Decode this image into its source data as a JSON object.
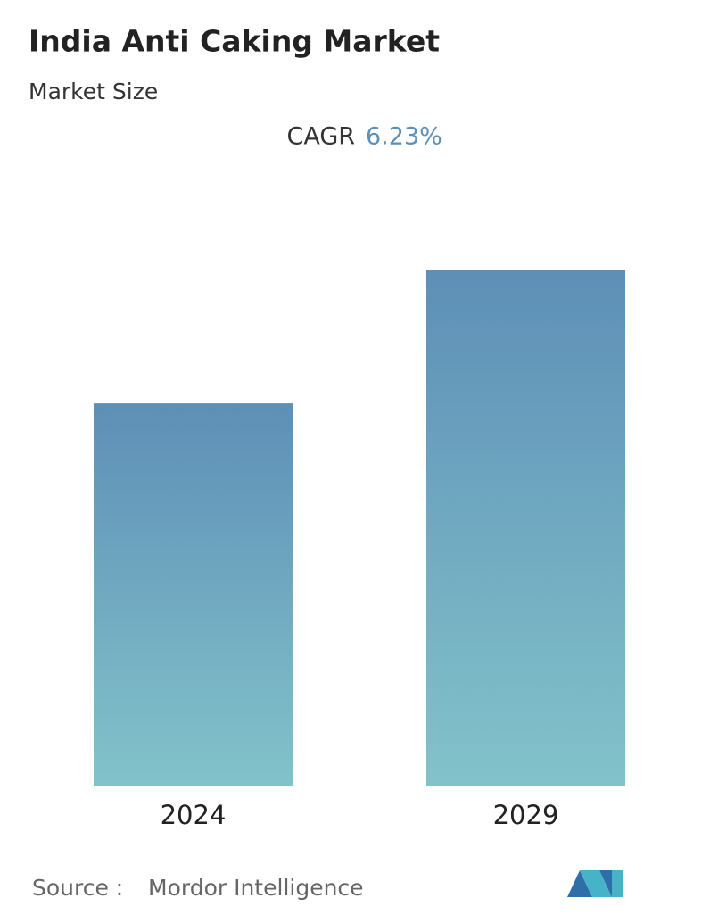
{
  "chart_data": {
    "type": "bar",
    "title": "India Anti Caking Market",
    "subtitle": "Market Size",
    "cagr_label": "CAGR",
    "cagr_value": "6.23%",
    "categories": [
      "2024",
      "2029"
    ],
    "values": [
      1,
      1.35
    ],
    "source_label": "Source :",
    "source": "Mordor Intelligence"
  }
}
